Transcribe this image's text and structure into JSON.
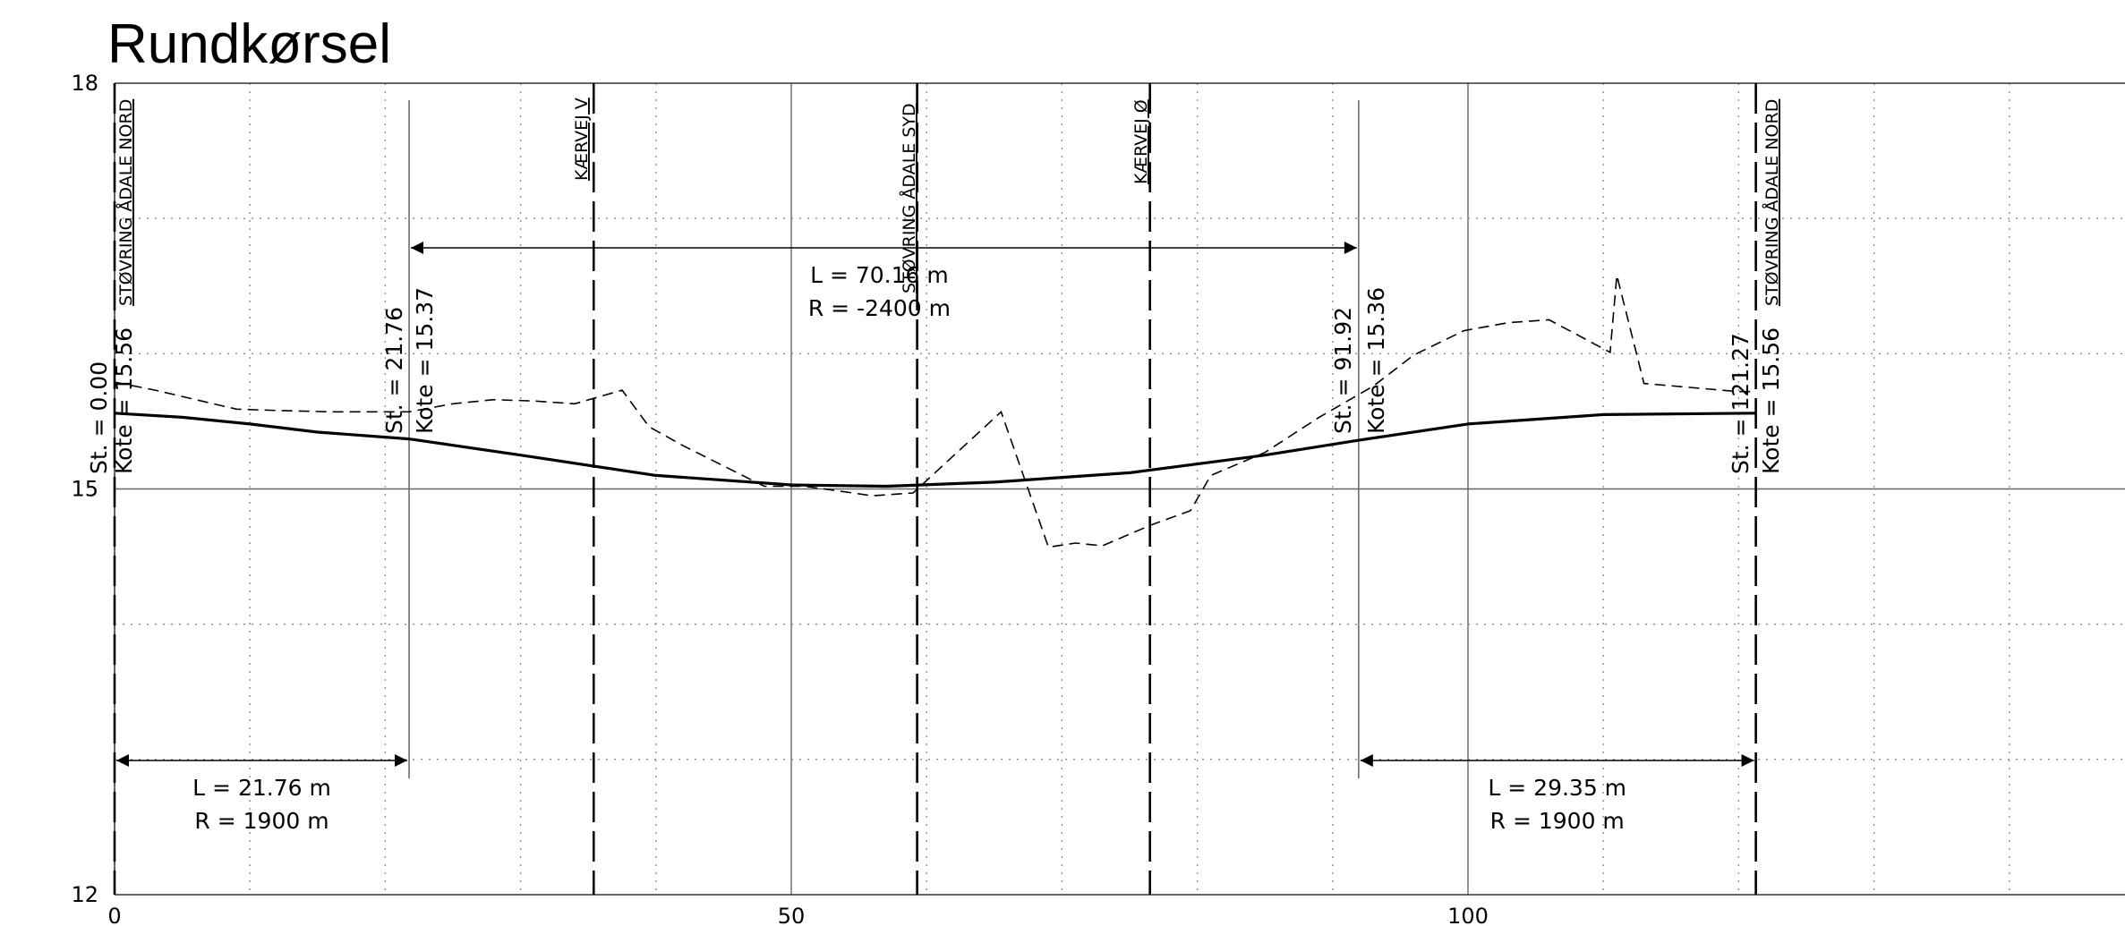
{
  "title": "Rundkørsel",
  "chart_data": {
    "type": "line",
    "xlim": [
      0,
      150
    ],
    "ylim": [
      12,
      18
    ],
    "x_ticks": [
      "0",
      "50",
      "100"
    ],
    "y_ticks": [
      "18",
      "15",
      "12"
    ],
    "grid": true,
    "series": [
      {
        "style": "solid",
        "x": [
          0,
          5,
          10,
          15,
          21.76,
          30,
          40,
          50,
          57,
          65,
          75,
          85,
          91.92,
          100,
          110,
          121.27
        ],
        "y": [
          15.56,
          15.53,
          15.48,
          15.42,
          15.37,
          15.25,
          15.1,
          15.03,
          15.02,
          15.05,
          15.12,
          15.25,
          15.36,
          15.48,
          15.55,
          15.56
        ]
      },
      {
        "style": "dashed",
        "x": [
          0,
          3,
          9,
          12,
          16,
          21.76,
          25,
          28,
          31,
          34,
          37.5,
          39.5,
          42,
          48,
          51,
          56,
          59,
          65.5,
          69,
          71,
          73,
          76.5,
          79.5,
          81,
          85,
          89,
          93,
          96,
          99.7,
          103,
          106,
          110.5,
          111,
          113,
          120,
          121.27
        ],
        "y": [
          15.79,
          15.73,
          15.59,
          15.58,
          15.57,
          15.57,
          15.63,
          15.66,
          15.65,
          15.63,
          15.73,
          15.46,
          15.32,
          15.02,
          15.02,
          14.95,
          14.97,
          15.57,
          14.57,
          14.6,
          14.58,
          14.73,
          14.84,
          15.1,
          15.27,
          15.53,
          15.76,
          15.99,
          16.17,
          16.23,
          16.25,
          16.01,
          16.58,
          15.78,
          15.72,
          15.72
        ]
      }
    ],
    "station_labels": [
      {
        "x": 0,
        "st": "St. = 0.00",
        "kote": "Kote = 15.56"
      },
      {
        "x": 21.76,
        "st": "St. = 21.76",
        "kote": "Kote = 15.37"
      },
      {
        "x": 91.92,
        "st": "St. = 91.92",
        "kote": "Kote = 15.36"
      },
      {
        "x": 121.27,
        "st": "St. = 121.27",
        "kote": "Kote = 15.56"
      }
    ],
    "crossings": [
      {
        "x": 0,
        "name": "STØVRING ÅDALE NORD"
      },
      {
        "x": 35.4,
        "name": "KÆRVEJ V"
      },
      {
        "x": 59.3,
        "name": "STØVRING ÅDALE SYD"
      },
      {
        "x": 76.5,
        "name": "KÆRVEJ Ø"
      },
      {
        "x": 121.27,
        "name": "STØVRING ÅDALE NORD"
      }
    ],
    "curves": [
      {
        "x1": 0,
        "x2": 21.76,
        "row": "bottom",
        "L": "L = 21.76 m",
        "R": "R = 1900 m"
      },
      {
        "x1": 21.76,
        "x2": 91.92,
        "row": "top",
        "L": "L = 70.16 m",
        "R": "R = -2400 m"
      },
      {
        "x1": 91.92,
        "x2": 121.27,
        "row": "bottom",
        "L": "L = 29.35 m",
        "R": "R = 1900 m"
      }
    ]
  }
}
